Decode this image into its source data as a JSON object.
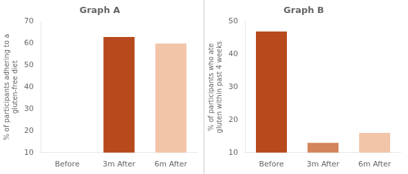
{
  "chart_data": [
    {
      "type": "bar",
      "title": "Graph A",
      "categories": [
        "Before",
        "3m After",
        "6m After"
      ],
      "values": [
        null,
        63,
        60
      ],
      "colors": [
        null,
        "#B8491C",
        "#F2C4A8"
      ],
      "ylabel": "% of participants adhering to a\ngluten-free diet",
      "ylim": [
        10,
        70
      ],
      "yticks": [
        10,
        20,
        30,
        40,
        50,
        60,
        70
      ],
      "grid": false
    },
    {
      "type": "bar",
      "title": "Graph B",
      "categories": [
        "Before",
        "3m After",
        "6m After"
      ],
      "values": [
        47,
        13,
        16
      ],
      "colors": [
        "#B8491C",
        "#D4845A",
        "#F2C4A8"
      ],
      "ylabel": "% of participants who ate\ngluten within past 4 weeks",
      "ylim": [
        10,
        50
      ],
      "yticks": [
        10,
        20,
        30,
        40,
        50
      ],
      "grid": false
    }
  ]
}
